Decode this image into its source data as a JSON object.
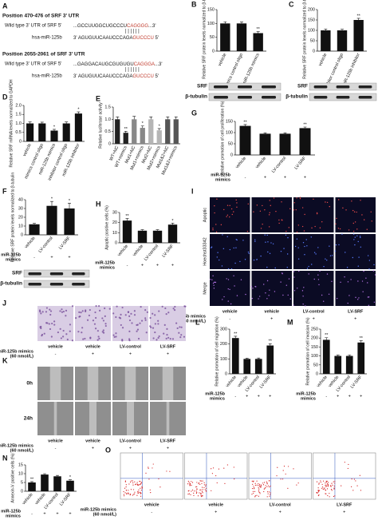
{
  "panel_a": {
    "label": "A",
    "sites": [
      {
        "position": "Position 470-476 of  SRF 3' UTR",
        "target_name": "Wild type  3' UTR of  SRF  5'",
        "target": [
          "...GCCUUGGCUGCCCU",
          "CAGGGG",
          "...3'"
        ],
        "pairing": "| | | | | |",
        "mirna_name": "hsa-miR-125b",
        "mirna": [
          "3'  AGUGUUCAAUCCCAGA",
          "GUCCCU",
          "  5'"
        ]
      },
      {
        "position": "Position 2055-2061 of  SRF 3' UTR",
        "target_name": "Wild type  3' UTR of  SRF  5'",
        "target": [
          "...GAGGACAUGCGUGUGU",
          "CAGGGA",
          "...3'"
        ],
        "pairing": "| | | | | |",
        "mirna_name": "hsa-miR-125b",
        "mirna": [
          "3'  AGUGUUCAAUCCCAGA",
          "GUCCCU",
          "  5'"
        ]
      }
    ]
  },
  "chart_data": [
    {
      "type": "bar",
      "panel": "B",
      "ylabel": "Relative SRF protein levels normalized to β-tubulin (%)",
      "categories": [
        "vehicle",
        "mimics control oligo",
        "miR-125b mimics"
      ],
      "values": [
        100,
        100,
        65
      ],
      "errors": [
        6,
        5,
        5
      ],
      "annotations": [
        null,
        null,
        "**"
      ],
      "ylim": [
        0,
        150
      ],
      "yticks": [
        0,
        50,
        100,
        150
      ],
      "color": "#111111",
      "blot": [
        "SRF",
        "β-tubulin"
      ]
    },
    {
      "type": "bar",
      "panel": "C",
      "ylabel": "Relative SRF protein levels normalized to β-tubulin (%)",
      "categories": [
        "vehicle",
        "inhibitor control oligo",
        "miR-125b inhibitor"
      ],
      "values": [
        100,
        100,
        150
      ],
      "errors": [
        6,
        5,
        8
      ],
      "annotations": [
        null,
        null,
        "**"
      ],
      "ylim": [
        0,
        200
      ],
      "yticks": [
        0,
        50,
        100,
        150,
        200
      ],
      "color": "#111111",
      "blot": [
        "SRF",
        "β-tubulin"
      ]
    },
    {
      "type": "bar",
      "panel": "D",
      "ylabel": "Relative SRF mRNA levels normalized to GAPDH",
      "categories": [
        "vehicle",
        "mimics control oligo",
        "miR-125b mimics",
        "inhibitor control oligo",
        "miR-125b inhibitor"
      ],
      "values": [
        1.0,
        1.0,
        0.6,
        1.0,
        1.55
      ],
      "errors": [
        0.08,
        0.07,
        0.07,
        0.08,
        0.09
      ],
      "annotations": [
        null,
        null,
        "*",
        null,
        "*"
      ],
      "ylim": [
        0,
        2.0
      ],
      "yticks": [
        0,
        0.5,
        {
          "value": 1,
          "label": "1.0"
        },
        1.5,
        {
          "value": 2,
          "label": "2.0"
        }
      ],
      "color": "#111111"
    },
    {
      "type": "bar",
      "panel": "E",
      "ylabel": "Relative luciferase activity",
      "categories": [
        "WT+NC",
        "WT+mimics",
        "Mut1+NC",
        "Mut1+mimics",
        "Mut2+NC",
        "Mut2+mimics",
        "Mut1&2+NC",
        "Mut1&2+mimics"
      ],
      "values": [
        1.0,
        0.45,
        1.0,
        0.65,
        1.0,
        0.55,
        1.0,
        1.0
      ],
      "errors": [
        0.1,
        0.06,
        0.12,
        0.08,
        0.1,
        0.07,
        0.1,
        0.1
      ],
      "annotations": [
        null,
        "**",
        null,
        "*",
        null,
        "*",
        null,
        null
      ],
      "ylim": [
        0,
        1.5
      ],
      "yticks": [
        0,
        0.5,
        {
          "value": 1,
          "label": "1.0"
        },
        1.5
      ],
      "colors": [
        "#222222",
        "#222222",
        "#888888",
        "#888888",
        "#b5b5b5",
        "#b5b5b5",
        "#555555",
        "#555555"
      ]
    },
    {
      "type": "bar",
      "panel": "G",
      "ylabel": "Relative promotion of cell proliferation (%)",
      "categories": [
        "vehicle",
        "vehicle",
        "LV-control",
        "LV-SRF"
      ],
      "values": [
        130,
        95,
        95,
        120
      ],
      "errors": [
        6,
        4,
        4,
        5
      ],
      "annotations": [
        "**",
        null,
        null,
        "**"
      ],
      "ylim": [
        0,
        150
      ],
      "yticks": [
        0,
        50,
        100,
        150
      ],
      "color": "#111111",
      "treatment_label": [
        "miR-125b",
        "mimics"
      ],
      "treatment": [
        "-",
        "+",
        "+",
        "+"
      ]
    },
    {
      "type": "bar",
      "panel": "F",
      "ylabel": "Relative SRF protein levels normalized to β-tubulin",
      "categories": [
        "vehicle",
        "LV-control",
        "LV-SRF"
      ],
      "values": [
        12,
        33,
        30
      ],
      "errors": [
        1,
        5,
        6
      ],
      "annotations": [
        null,
        "*",
        "*"
      ],
      "ylim": [
        0,
        40
      ],
      "yticks": [
        0,
        10,
        20,
        30,
        40
      ],
      "color": "#111111",
      "treatment_label": [
        "miR-125b",
        "mimics"
      ],
      "treatment": [
        "-",
        "+",
        "+"
      ],
      "blot": [
        "SRF",
        "β-tubulin"
      ]
    },
    {
      "type": "bar",
      "panel": "H",
      "ylabel": "Apoptic positive cells (%)",
      "categories": [
        "vehicle",
        "vehicle",
        "LV-control",
        "LV-SRF"
      ],
      "values": [
        22,
        12,
        12,
        18
      ],
      "errors": [
        2,
        1,
        1,
        1.5
      ],
      "annotations": [
        "**",
        null,
        null,
        "*"
      ],
      "ylim": [
        0,
        30
      ],
      "yticks": [
        0,
        10,
        20,
        30
      ],
      "color": "#111111",
      "treatment_label": [
        "miR-125b",
        "mimics"
      ],
      "treatment": [
        "-",
        "+",
        "+",
        "+"
      ]
    },
    {
      "type": "bar",
      "panel": "L",
      "ylabel": "Relative promotion of cell migration (%)",
      "categories": [
        "vehicle",
        "vehicle",
        "LV-control",
        "LV-SRF"
      ],
      "values": [
        240,
        100,
        100,
        190
      ],
      "errors": [
        12,
        5,
        6,
        12
      ],
      "annotations": [
        "**",
        null,
        null,
        "**"
      ],
      "ylim": [
        0,
        300
      ],
      "yticks": [
        0,
        100,
        200,
        300
      ],
      "color": "#111111",
      "treatment_label": [
        "miR-125b",
        "mimics"
      ],
      "treatment": [
        "-",
        "+",
        "+",
        "+"
      ]
    },
    {
      "type": "bar",
      "panel": "M",
      "ylabel": "Relative promotion of cell invasion (%)",
      "categories": [
        "vehicle",
        "vehicle",
        "LV-control",
        "LV-SRF"
      ],
      "values": [
        190,
        100,
        100,
        175
      ],
      "errors": [
        12,
        5,
        6,
        10
      ],
      "annotations": [
        "**",
        null,
        null,
        "**"
      ],
      "ylim": [
        0,
        250
      ],
      "yticks": [
        0,
        50,
        100,
        150,
        200,
        250
      ],
      "color": "#111111",
      "treatment_label": [
        "miR-125b",
        "mimics"
      ],
      "treatment": [
        "-",
        "+",
        "+",
        "+"
      ]
    },
    {
      "type": "bar",
      "panel": "N",
      "ylabel": "Annexin-V positive cells (%)",
      "categories": [
        "vehicle",
        "vehicle",
        "LV-control",
        "LV-SRF"
      ],
      "values": [
        5,
        9.5,
        8.5,
        6
      ],
      "errors": [
        0.5,
        0.5,
        0.5,
        0.5
      ],
      "annotations": [
        "**",
        null,
        null,
        "*"
      ],
      "ylim": [
        0,
        15
      ],
      "yticks": [
        0,
        5,
        10,
        15
      ],
      "color": "#111111",
      "treatment_label": [
        "miR-125b",
        "mimics"
      ],
      "treatment": [
        "-",
        "+",
        "+",
        "+"
      ]
    }
  ],
  "image_panels": [
    {
      "label": "I",
      "kind": "fluorescence",
      "rows": [
        "Apoptic",
        "Hoechst33342",
        "Merge"
      ],
      "columns": [
        "vehicle",
        "vehicle",
        "LV-control",
        "LV-SRF"
      ],
      "treatment_label": [
        "miR-125b mimics",
        "(60 nmol/L)"
      ],
      "treatment": [
        "-",
        "+",
        "+",
        "+"
      ]
    },
    {
      "label": "J",
      "kind": "crystal",
      "rows": [
        null
      ],
      "columns": [
        "vehicle",
        "vehicle",
        "LV-control",
        "LV-SRF"
      ],
      "treatment_label": [
        "miR-125b mimics",
        "(60 nmol/L)"
      ],
      "treatment": [
        "-",
        "+",
        "+",
        "+"
      ]
    },
    {
      "label": "K",
      "kind": "wound",
      "rows": [
        "0h",
        "24h"
      ],
      "columns": [
        "vehicle",
        "vehicle",
        "LV-control",
        "LV-SRF"
      ],
      "treatment_label": [
        "miR-125b mimics",
        "(60 nmol/L)"
      ],
      "treatment": [
        "-",
        "+",
        "+",
        "+"
      ]
    },
    {
      "label": "O",
      "kind": "flow",
      "rows": [
        null
      ],
      "columns": [
        "vehicle",
        "vehicle",
        "LV-control",
        "LV-SRF"
      ],
      "treatment_label": [
        "miR-125b mimics",
        "(60 nmol/L)"
      ],
      "treatment": [
        "-",
        "+",
        "+",
        "+"
      ]
    }
  ]
}
